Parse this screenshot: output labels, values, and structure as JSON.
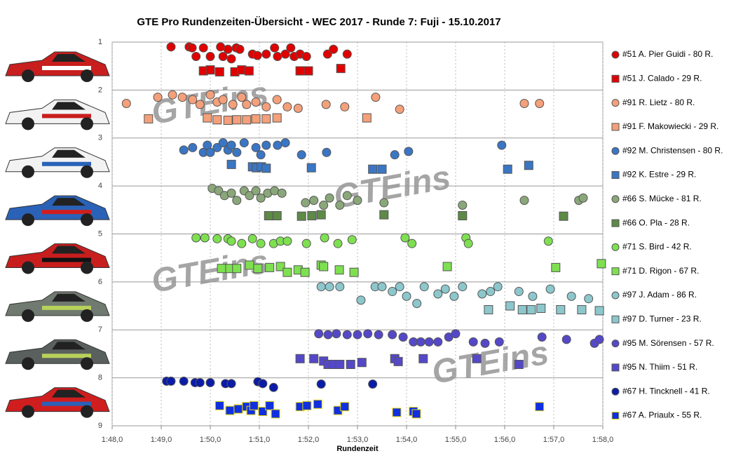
{
  "chart_data": {
    "type": "scatter",
    "title": "GTE Pro Rundenzeiten-Übersicht  - WEC 2017  - Runde  7: Fuji  - 15.10.2017",
    "x_label": "Rundenzeit",
    "watermark": "GTEins",
    "xlim": [
      108,
      118
    ],
    "ylim": [
      1,
      9
    ],
    "y_inverted": true,
    "grid": true,
    "legend": "right",
    "xticks": [
      {
        "value": 108,
        "label": "1:48,0"
      },
      {
        "value": 109,
        "label": "1:49,0"
      },
      {
        "value": 110,
        "label": "1:50,0"
      },
      {
        "value": 111,
        "label": "1:51,0"
      },
      {
        "value": 112,
        "label": "1:52,0"
      },
      {
        "value": 113,
        "label": "1:53,0"
      },
      {
        "value": 114,
        "label": "1:54,0"
      },
      {
        "value": 115,
        "label": "1:55,0"
      },
      {
        "value": 116,
        "label": "1:56,0"
      },
      {
        "value": 117,
        "label": "1:57,0"
      },
      {
        "value": 118,
        "label": "1:58,0"
      }
    ],
    "yticks": [
      1,
      2,
      3,
      4,
      5,
      6,
      7,
      8,
      9
    ],
    "series": [
      {
        "name": "#51 A. Pier Guidi - 80 R.",
        "marker": "circle",
        "color": "#e00000",
        "x": [
          109.2,
          109.57,
          109.63,
          109.71,
          109.86,
          110.0,
          110.21,
          110.26,
          110.36,
          110.43,
          110.53,
          110.6,
          110.86,
          110.96,
          111.14,
          111.31,
          111.37,
          111.53,
          111.64,
          111.71,
          111.83,
          111.96,
          112.39,
          112.51,
          112.79
        ],
        "y": [
          1.1,
          1.1,
          1.12,
          1.3,
          1.12,
          1.3,
          1.1,
          1.3,
          1.15,
          1.35,
          1.12,
          1.15,
          1.25,
          1.28,
          1.25,
          1.12,
          1.3,
          1.25,
          1.12,
          1.3,
          1.25,
          1.3,
          1.25,
          1.15,
          1.25
        ]
      },
      {
        "name": "#51 J. Calado - 29 R.",
        "marker": "square",
        "color": "#e00000",
        "x": [
          109.86,
          110.0,
          110.19,
          110.5,
          110.64,
          110.79,
          111.83,
          112.0,
          112.66
        ],
        "y": [
          1.6,
          1.58,
          1.62,
          1.62,
          1.58,
          1.6,
          1.6,
          1.6,
          1.55
        ]
      },
      {
        "name": "#91 R. Lietz - 80 R.",
        "marker": "circle",
        "color": "#f4a07a",
        "x": [
          108.29,
          108.93,
          109.23,
          109.43,
          109.64,
          109.79,
          110.0,
          110.14,
          110.26,
          110.46,
          110.64,
          110.74,
          110.93,
          111.14,
          111.36,
          111.57,
          111.79,
          112.36,
          112.74,
          113.37,
          113.86,
          116.4,
          116.71
        ],
        "y": [
          2.28,
          2.15,
          2.1,
          2.15,
          2.2,
          2.3,
          2.1,
          2.25,
          2.2,
          2.3,
          2.15,
          2.3,
          2.25,
          2.35,
          2.2,
          2.35,
          2.38,
          2.3,
          2.35,
          2.15,
          2.4,
          2.28,
          2.28
        ]
      },
      {
        "name": "#91 F. Makowiecki - 29 R.",
        "marker": "square",
        "color": "#f4a07a",
        "x": [
          108.74,
          109.94,
          110.14,
          110.36,
          110.54,
          110.74,
          110.93,
          111.14,
          111.36,
          113.19
        ],
        "y": [
          2.6,
          2.58,
          2.62,
          2.63,
          2.62,
          2.62,
          2.6,
          2.6,
          2.58,
          2.58
        ]
      },
      {
        "name": "#92 M. Christensen - 80 R.",
        "marker": "circle",
        "color": "#3a76c4",
        "x": [
          109.46,
          109.64,
          109.86,
          109.94,
          110.0,
          110.14,
          110.26,
          110.36,
          110.43,
          110.54,
          110.69,
          110.93,
          111.03,
          111.14,
          111.37,
          111.53,
          111.86,
          112.37,
          113.76,
          114.04,
          115.94
        ],
        "y": [
          3.25,
          3.2,
          3.3,
          3.15,
          3.3,
          3.2,
          3.1,
          3.25,
          3.15,
          3.3,
          3.1,
          3.2,
          3.35,
          3.15,
          3.15,
          3.1,
          3.35,
          3.3,
          3.35,
          3.28,
          3.15
        ]
      },
      {
        "name": "#92 K. Estre - 29 R.",
        "marker": "square",
        "color": "#3a76c4",
        "x": [
          110.43,
          110.86,
          110.94,
          111.04,
          111.14,
          112.06,
          113.31,
          113.5,
          116.06,
          116.49
        ],
        "y": [
          3.55,
          3.6,
          3.62,
          3.6,
          3.63,
          3.62,
          3.65,
          3.65,
          3.65,
          3.57
        ]
      },
      {
        "name": "#66 S. Mücke - 81 R.",
        "marker": "circle",
        "color": "#8aa77a",
        "x": [
          110.04,
          110.17,
          110.29,
          110.43,
          110.54,
          110.69,
          110.8,
          110.93,
          111.03,
          111.17,
          111.31,
          111.46,
          111.94,
          112.11,
          112.31,
          112.43,
          112.64,
          112.79,
          113.0,
          113.54,
          115.14,
          116.4,
          117.51,
          117.6
        ],
        "y": [
          4.05,
          4.1,
          4.2,
          4.15,
          4.3,
          4.1,
          4.2,
          4.1,
          4.25,
          4.15,
          4.1,
          4.15,
          4.35,
          4.3,
          4.4,
          4.25,
          4.4,
          4.2,
          4.3,
          4.35,
          4.4,
          4.3,
          4.3,
          4.25
        ]
      },
      {
        "name": "#66 O. Pla - 28 R.",
        "marker": "square",
        "color": "#5e8a48",
        "x": [
          111.19,
          111.36,
          111.86,
          112.07,
          112.26,
          113.54,
          115.14,
          117.2
        ],
        "y": [
          4.62,
          4.62,
          4.63,
          4.62,
          4.6,
          4.6,
          4.62,
          4.63
        ]
      },
      {
        "name": "#71 S. Bird - 42 R.",
        "marker": "circle",
        "color": "#7ee050",
        "x": [
          109.71,
          109.89,
          110.14,
          110.36,
          110.43,
          110.64,
          110.86,
          111.03,
          111.29,
          111.43,
          111.57,
          111.96,
          112.33,
          112.6,
          112.89,
          113.97,
          114.11,
          115.21,
          115.26,
          116.89
        ],
        "y": [
          5.08,
          5.08,
          5.1,
          5.1,
          5.15,
          5.2,
          5.1,
          5.2,
          5.2,
          5.15,
          5.15,
          5.2,
          5.08,
          5.2,
          5.12,
          5.08,
          5.2,
          5.08,
          5.2,
          5.15
        ]
      },
      {
        "name": "#71 D. Rigon - 67 R.",
        "marker": "square",
        "color": "#7ee050",
        "x": [
          110.23,
          110.4,
          110.54,
          110.8,
          110.97,
          111.21,
          111.43,
          111.57,
          111.79,
          111.93,
          112.26,
          112.31,
          112.63,
          112.93,
          114.83,
          117.04,
          117.97
        ],
        "y": [
          5.72,
          5.72,
          5.72,
          5.65,
          5.72,
          5.7,
          5.68,
          5.8,
          5.75,
          5.8,
          5.65,
          5.68,
          5.75,
          5.8,
          5.68,
          5.7,
          5.62
        ]
      },
      {
        "name": "#97 J. Adam - 86 R.",
        "marker": "circle",
        "color": "#8cc7cc",
        "x": [
          112.26,
          112.43,
          112.64,
          113.07,
          113.36,
          113.5,
          113.71,
          113.86,
          114.0,
          114.21,
          114.36,
          114.64,
          114.79,
          114.97,
          115.14,
          115.54,
          115.71,
          115.86,
          116.29,
          116.57,
          116.93,
          117.36,
          117.71
        ],
        "y": [
          6.1,
          6.1,
          6.1,
          6.38,
          6.1,
          6.1,
          6.2,
          6.1,
          6.3,
          6.45,
          6.1,
          6.25,
          6.15,
          6.3,
          6.1,
          6.25,
          6.2,
          6.1,
          6.2,
          6.3,
          6.15,
          6.3,
          6.35
        ]
      },
      {
        "name": "#97 D. Turner - 23 R.",
        "marker": "square",
        "color": "#8cc7cc",
        "x": [
          115.67,
          116.11,
          116.36,
          116.54,
          116.74,
          117.14,
          117.57,
          117.93
        ],
        "y": [
          6.58,
          6.5,
          6.58,
          6.58,
          6.55,
          6.58,
          6.58,
          6.6
        ]
      },
      {
        "name": "#95 M. Sörensen - 57 R.",
        "marker": "circle",
        "color": "#5548c8",
        "x": [
          112.21,
          112.4,
          112.57,
          112.79,
          113.0,
          113.21,
          113.43,
          113.71,
          113.93,
          114.14,
          114.29,
          114.46,
          114.64,
          114.86,
          115.0,
          115.36,
          115.6,
          115.89,
          116.76,
          117.26,
          117.83,
          117.93
        ],
        "y": [
          7.08,
          7.1,
          7.08,
          7.1,
          7.1,
          7.08,
          7.1,
          7.1,
          7.15,
          7.25,
          7.25,
          7.25,
          7.25,
          7.15,
          7.08,
          7.25,
          7.28,
          7.25,
          7.15,
          7.2,
          7.28,
          7.2
        ]
      },
      {
        "name": "#95 N. Thiim - 51 R.",
        "marker": "square",
        "color": "#5548c8",
        "x": [
          111.83,
          112.11,
          112.31,
          112.4,
          112.51,
          112.64,
          112.86,
          113.09,
          113.76,
          113.83,
          114.34,
          115.43,
          116.29
        ],
        "y": [
          7.6,
          7.6,
          7.65,
          7.72,
          7.72,
          7.72,
          7.72,
          7.68,
          7.6,
          7.66,
          7.6,
          7.6,
          7.72
        ]
      },
      {
        "name": "#67 H. Tincknell - 41 R.",
        "marker": "circle",
        "color": "#0b1ca8",
        "x": [
          109.11,
          109.2,
          109.46,
          109.69,
          109.79,
          110.0,
          110.31,
          110.43,
          110.97,
          111.07,
          111.29,
          112.26,
          113.31
        ],
        "y": [
          8.07,
          8.07,
          8.07,
          8.1,
          8.1,
          8.1,
          8.12,
          8.12,
          8.08,
          8.12,
          8.2,
          8.13,
          8.13
        ]
      },
      {
        "name": "#67 A. Priaulx - 55 R.",
        "marker": "square",
        "color": "#1030e0",
        "x": [
          110.19,
          110.4,
          110.57,
          110.74,
          110.83,
          110.89,
          111.07,
          111.21,
          111.33,
          111.83,
          111.97,
          112.19,
          112.6,
          112.74,
          113.8,
          114.14,
          114.2,
          116.71
        ],
        "y": [
          8.58,
          8.68,
          8.65,
          8.6,
          8.68,
          8.58,
          8.7,
          8.58,
          8.75,
          8.6,
          8.58,
          8.55,
          8.68,
          8.6,
          8.72,
          8.7,
          8.75,
          8.6
        ]
      }
    ]
  }
}
